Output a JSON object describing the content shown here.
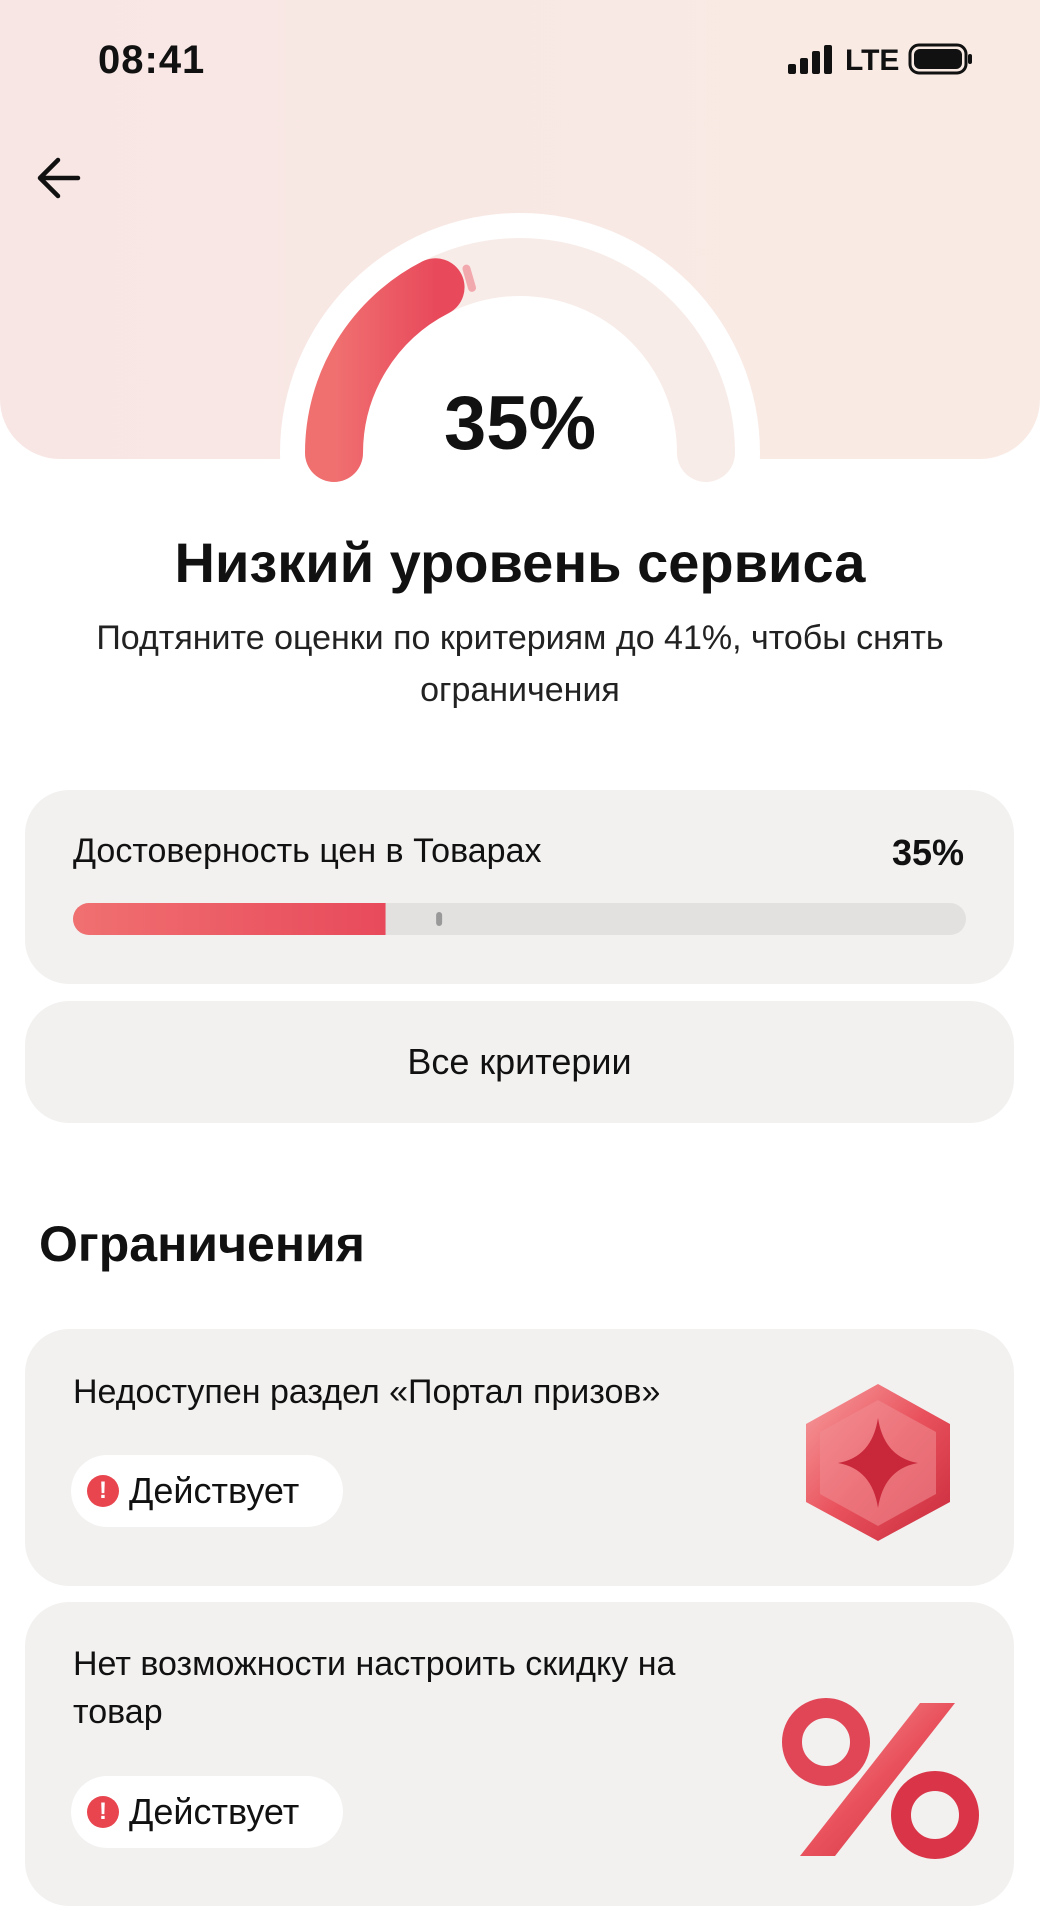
{
  "status_bar": {
    "time": "08:41",
    "network": "LTE"
  },
  "gauge": {
    "value": 35,
    "label": "35%",
    "threshold": 41,
    "range": [
      0,
      100
    ]
  },
  "heading": {
    "title": "Низкий уровень сервиса",
    "subtitle": "Подтяните оценки по критериям до 41%, чтобы снять ограничения"
  },
  "criteria": {
    "items": [
      {
        "name": "Достоверность цен в Товарах",
        "value": 35,
        "label": "35%",
        "threshold": 41
      }
    ],
    "range": [
      0,
      100
    ],
    "all_button": "Все критерии"
  },
  "restrictions": {
    "title": "Ограничения",
    "items": [
      {
        "text": "Недоступен раздел «Портал призов»",
        "status": "Действует"
      },
      {
        "text": "Нет возможности настроить скидку на товар",
        "status": "Действует"
      }
    ]
  }
}
